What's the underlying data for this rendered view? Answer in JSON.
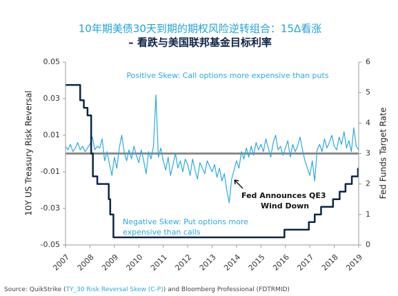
{
  "chart_data": {
    "type": "line",
    "title": "10年期美债30天到期的期权风险逆转组合：15Δ看涨",
    "subtitle": "– 看跌与美国联邦基金目标利率",
    "y_label": "10Y US Treasury Risk Reversal",
    "y2_label": "Fed Funds Target Rate",
    "annotations": [
      "Positive Skew: Call options more expensive than puts",
      "Negative Skew: Put options more",
      "expensive than calls",
      "Fed Announces QE3",
      "Wind Down"
    ],
    "source": [
      "Source: QuikStrike (",
      "TY_30 Risk Reversal Skew (C-P)",
      ") and Bloomberg Professional (FDTRMID)"
    ],
    "xlim": [
      2007,
      2019
    ],
    "xticks": [
      2007,
      2008,
      2009,
      2010,
      2011,
      2012,
      2013,
      2014,
      2015,
      2016,
      2017,
      2018,
      2019
    ],
    "ylim": [
      -0.05,
      0.05
    ],
    "yticks": [
      0.05,
      0.03,
      0.01,
      -0.01,
      -0.03,
      -0.05
    ],
    "y2lim": [
      0,
      6
    ],
    "y2ticks": [
      0,
      1,
      2,
      3,
      4,
      5,
      6
    ],
    "hline": 0,
    "series": [
      {
        "color": "#29a9e0",
        "axis": "y",
        "x": [
          2007.0,
          2007.1,
          2007.2,
          2007.3,
          2007.4,
          2007.5,
          2007.6,
          2007.7,
          2007.8,
          2007.9,
          2008.0,
          2008.1,
          2008.2,
          2008.3,
          2008.4,
          2008.5,
          2008.6,
          2008.7,
          2008.8,
          2008.9,
          2009.0,
          2009.1,
          2009.2,
          2009.3,
          2009.4,
          2009.5,
          2009.6,
          2009.7,
          2009.8,
          2009.9,
          2010.0,
          2010.1,
          2010.2,
          2010.3,
          2010.4,
          2010.5,
          2010.6,
          2010.7,
          2010.8,
          2010.9,
          2011.0,
          2011.1,
          2011.2,
          2011.3,
          2011.4,
          2011.5,
          2011.6,
          2011.7,
          2011.8,
          2011.9,
          2012.0,
          2012.1,
          2012.2,
          2012.3,
          2012.4,
          2012.5,
          2012.6,
          2012.7,
          2012.8,
          2012.9,
          2013.0,
          2013.1,
          2013.2,
          2013.3,
          2013.4,
          2013.5,
          2013.6,
          2013.7,
          2013.8,
          2013.9,
          2014.0,
          2014.1,
          2014.2,
          2014.3,
          2014.4,
          2014.5,
          2014.6,
          2014.7,
          2014.8,
          2014.9,
          2015.0,
          2015.1,
          2015.2,
          2015.3,
          2015.4,
          2015.5,
          2015.6,
          2015.7,
          2015.8,
          2015.9,
          2016.0,
          2016.1,
          2016.2,
          2016.3,
          2016.4,
          2016.5,
          2016.6,
          2016.7,
          2016.8,
          2016.9,
          2017.0,
          2017.1,
          2017.2,
          2017.3,
          2017.4,
          2017.5,
          2017.6,
          2017.7,
          2017.8,
          2017.9,
          2018.0,
          2018.1,
          2018.2,
          2018.3,
          2018.4,
          2018.5,
          2018.6,
          2018.7,
          2018.8,
          2018.9,
          2019.0
        ],
        "values": [
          0.004,
          0.002,
          0.005,
          0.001,
          0.003,
          0.006,
          0.002,
          0.004,
          0.001,
          0.003,
          0.005,
          0.009,
          0.002,
          0.004,
          0.003,
          0.008,
          -0.004,
          0.001,
          -0.006,
          -0.012,
          -0.002,
          -0.008,
          0.003,
          0.01,
          0.001,
          -0.004,
          0.002,
          -0.003,
          0.004,
          -0.001,
          -0.005,
          0.002,
          -0.004,
          -0.011,
          0.001,
          -0.003,
          0.004,
          0.032,
          -0.002,
          0.003,
          -0.004,
          -0.009,
          -0.002,
          -0.012,
          -0.006,
          0.0,
          -0.008,
          -0.004,
          -0.01,
          -0.003,
          -0.006,
          -0.012,
          -0.003,
          -0.009,
          -0.014,
          -0.005,
          -0.008,
          -0.011,
          -0.004,
          -0.007,
          -0.01,
          -0.006,
          -0.013,
          -0.008,
          -0.015,
          -0.011,
          -0.02,
          -0.027,
          -0.014,
          -0.009,
          -0.004,
          -0.008,
          0.001,
          -0.003,
          0.003,
          -0.002,
          0.004,
          -0.001,
          0.006,
          0.002,
          0.005,
          0.001,
          0.008,
          0.003,
          -0.002,
          0.006,
          0.01,
          0.002,
          0.004,
          -0.001,
          0.003,
          0.007,
          -0.002,
          0.005,
          0.001,
          0.004,
          0.009,
          0.002,
          -0.004,
          -0.008,
          -0.012,
          -0.004,
          -0.015,
          0.002,
          0.005,
          0.001,
          0.008,
          0.003,
          0.006,
          0.01,
          0.004,
          0.002,
          0.009,
          0.005,
          0.012,
          0.003,
          0.007,
          0.001,
          0.014,
          0.004,
          0.002
        ]
      },
      {
        "color": "#0d2447",
        "axis": "y2",
        "x": [
          2007,
          2007.6,
          2007.6,
          2007.75,
          2007.75,
          2007.9,
          2007.9,
          2008.05,
          2008.05,
          2008.12,
          2008.12,
          2008.3,
          2008.3,
          2008.77,
          2008.77,
          2008.83,
          2008.83,
          2008.96,
          2008.96,
          2015.96,
          2015.96,
          2016.96,
          2016.96,
          2017.2,
          2017.2,
          2017.46,
          2017.46,
          2017.95,
          2017.95,
          2018.22,
          2018.22,
          2018.46,
          2018.46,
          2018.72,
          2018.72,
          2018.97,
          2018.97,
          2019
        ],
        "values": [
          5.25,
          5.25,
          4.75,
          4.75,
          4.5,
          4.5,
          4.25,
          4.25,
          3.0,
          3.0,
          2.25,
          2.25,
          2.0,
          2.0,
          1.5,
          1.5,
          1.0,
          1.0,
          0.25,
          0.25,
          0.5,
          0.5,
          0.75,
          0.75,
          1.0,
          1.0,
          1.25,
          1.25,
          1.5,
          1.5,
          1.75,
          1.75,
          2.0,
          2.0,
          2.25,
          2.25,
          2.5,
          2.5
        ]
      }
    ]
  }
}
